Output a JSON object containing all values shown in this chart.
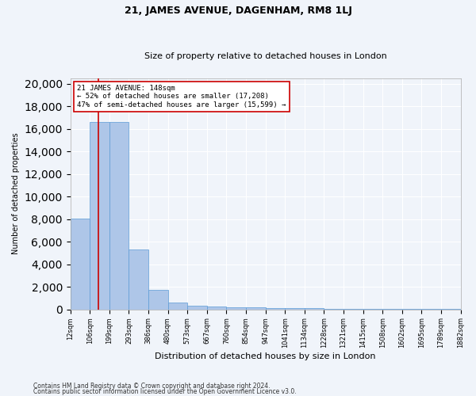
{
  "title1": "21, JAMES AVENUE, DAGENHAM, RM8 1LJ",
  "title2": "Size of property relative to detached houses in London",
  "xlabel": "Distribution of detached houses by size in London",
  "ylabel": "Number of detached properties",
  "bar_values": [
    8054,
    16600,
    16600,
    5300,
    1750,
    600,
    350,
    250,
    200,
    150,
    120,
    100,
    80,
    60,
    50,
    40,
    30,
    25,
    20,
    15
  ],
  "bin_labels": [
    "12sqm",
    "106sqm",
    "199sqm",
    "293sqm",
    "386sqm",
    "480sqm",
    "573sqm",
    "667sqm",
    "760sqm",
    "854sqm",
    "947sqm",
    "1041sqm",
    "1134sqm",
    "1228sqm",
    "1321sqm",
    "1415sqm",
    "1508sqm",
    "1602sqm",
    "1695sqm",
    "1789sqm",
    "1882sqm"
  ],
  "bar_color": "#aec6e8",
  "bar_edge_color": "#5b9bd5",
  "vline_color": "#cc0000",
  "annotation_title": "21 JAMES AVENUE: 148sqm",
  "annotation_line1": "← 52% of detached houses are smaller (17,208)",
  "annotation_line2": "47% of semi-detached houses are larger (15,599) →",
  "annotation_box_color": "#ffffff",
  "annotation_box_edge": "#cc0000",
  "ylim": [
    0,
    20500
  ],
  "yticks": [
    0,
    2000,
    4000,
    6000,
    8000,
    10000,
    12000,
    14000,
    16000,
    18000,
    20000
  ],
  "footer1": "Contains HM Land Registry data © Crown copyright and database right 2024.",
  "footer2": "Contains public sector information licensed under the Open Government Licence v3.0.",
  "bg_color": "#f0f4fa",
  "plot_bg_color": "#f0f4fa",
  "grid_color": "#ffffff",
  "title1_fontsize": 9,
  "title2_fontsize": 8,
  "ylabel_fontsize": 7,
  "xlabel_fontsize": 8,
  "tick_fontsize": 6,
  "annot_fontsize": 6.5,
  "footer_fontsize": 5.5
}
